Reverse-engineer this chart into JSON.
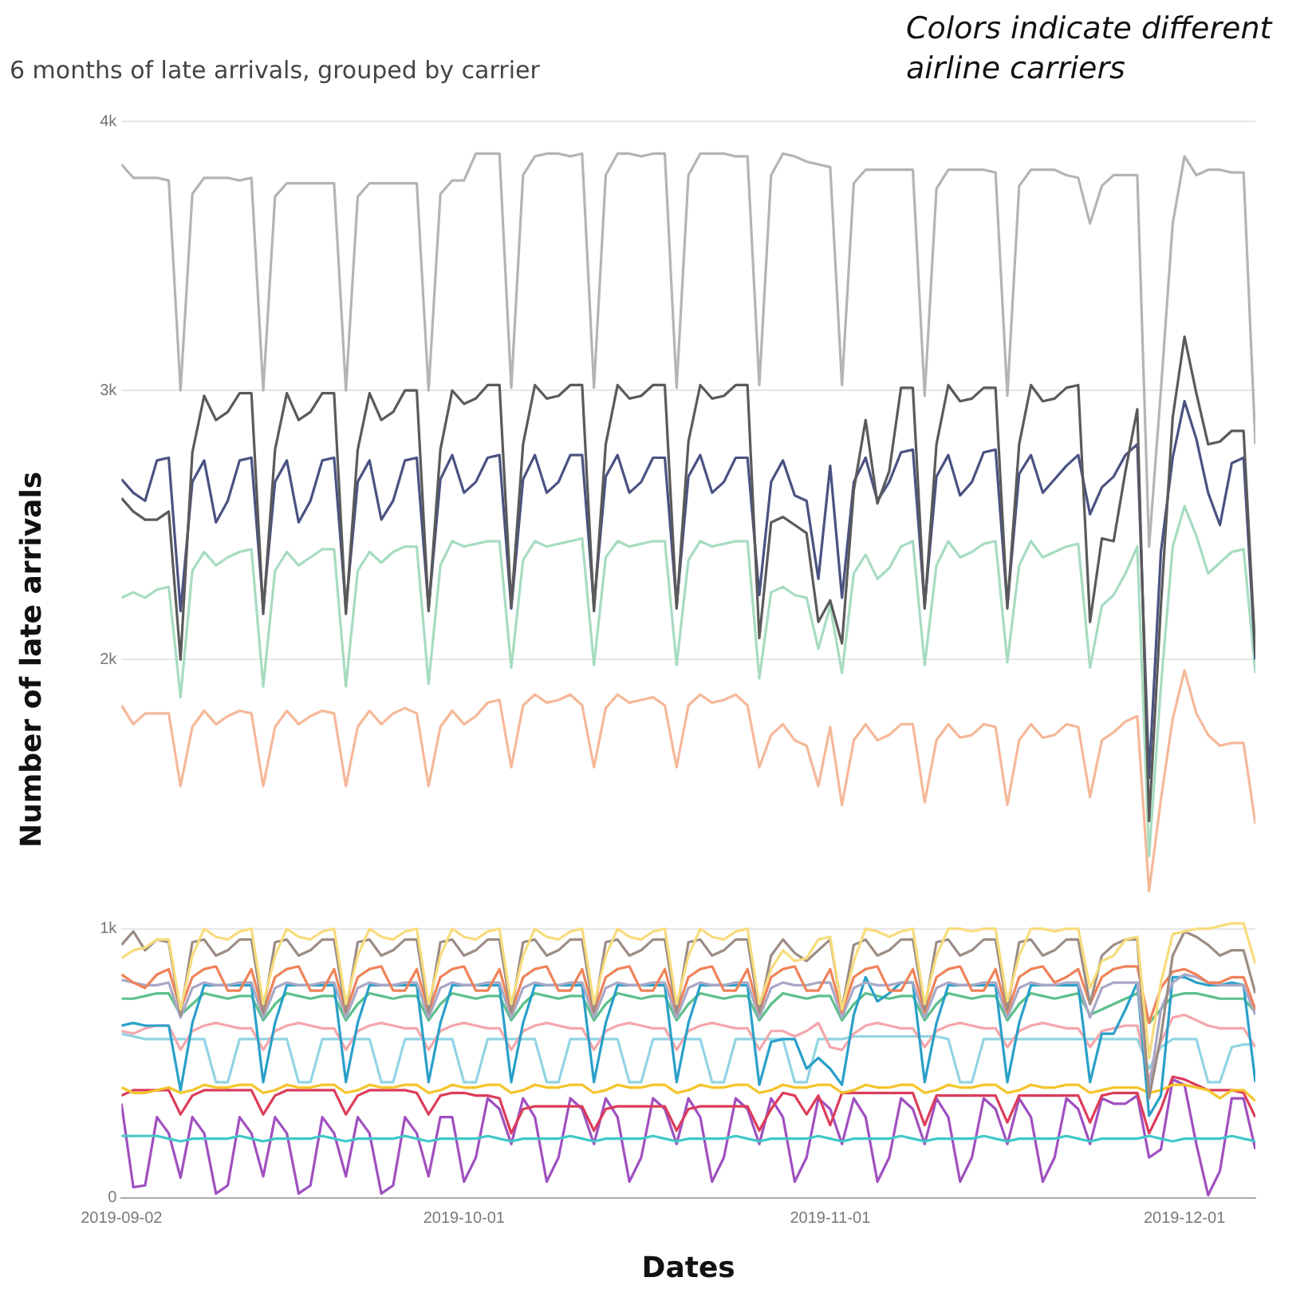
{
  "chart_data": {
    "type": "line",
    "title": "6 months of late arrivals, grouped by carrier",
    "xlabel": "Dates",
    "ylabel": "Number of late arrivals",
    "annotations": [
      "Colors indicate different airline carriers"
    ],
    "x": [
      "2019-09-02",
      "2019-09-03",
      "2019-09-04",
      "2019-09-05",
      "2019-09-06",
      "2019-09-07",
      "2019-09-08",
      "2019-09-09",
      "2019-09-10",
      "2019-09-11",
      "2019-09-12",
      "2019-09-13",
      "2019-09-14",
      "2019-09-15",
      "2019-09-16",
      "2019-09-17",
      "2019-09-18",
      "2019-09-19",
      "2019-09-20",
      "2019-09-21",
      "2019-09-22",
      "2019-09-23",
      "2019-09-24",
      "2019-09-25",
      "2019-09-26",
      "2019-09-27",
      "2019-09-28",
      "2019-09-29",
      "2019-09-30",
      "2019-10-01",
      "2019-10-02",
      "2019-10-03",
      "2019-10-04",
      "2019-10-05",
      "2019-10-06",
      "2019-10-07",
      "2019-10-08",
      "2019-10-09",
      "2019-10-10",
      "2019-10-11",
      "2019-10-12",
      "2019-10-13",
      "2019-10-14",
      "2019-10-15",
      "2019-10-16",
      "2019-10-17",
      "2019-10-18",
      "2019-10-19",
      "2019-10-20",
      "2019-10-21",
      "2019-10-22",
      "2019-10-23",
      "2019-10-24",
      "2019-10-25",
      "2019-10-26",
      "2019-10-27",
      "2019-10-28",
      "2019-10-29",
      "2019-10-30",
      "2019-10-31",
      "2019-11-01",
      "2019-11-02",
      "2019-11-03",
      "2019-11-04",
      "2019-11-05",
      "2019-11-06",
      "2019-11-07",
      "2019-11-08",
      "2019-11-09",
      "2019-11-10",
      "2019-11-11",
      "2019-11-12",
      "2019-11-13",
      "2019-11-14",
      "2019-11-15",
      "2019-11-16",
      "2019-11-17",
      "2019-11-18",
      "2019-11-19",
      "2019-11-20",
      "2019-11-21",
      "2019-11-22",
      "2019-11-23",
      "2019-11-24",
      "2019-11-25",
      "2019-11-26",
      "2019-11-27",
      "2019-11-28",
      "2019-11-29",
      "2019-11-30",
      "2019-12-01",
      "2019-12-02",
      "2019-12-03",
      "2019-12-04",
      "2019-12-05",
      "2019-12-06",
      "2019-12-07"
    ],
    "xlim": [
      "2019-09-02",
      "2019-12-07"
    ],
    "xticks": [
      "2019-09-02",
      "2019-10-01",
      "2019-11-01",
      "2019-12-01"
    ],
    "ylim": [
      0,
      4000
    ],
    "yticks": [
      0,
      {
        "value": 1000,
        "label": "1k"
      },
      {
        "value": 2000,
        "label": "2k"
      },
      {
        "value": 3000,
        "label": "3k"
      },
      {
        "value": 4000,
        "label": "4k"
      }
    ],
    "grid": "y",
    "legend": false,
    "marker": "none",
    "line_style": "solid",
    "series": [
      {
        "color": "#b4b4b4",
        "values": [
          3840,
          3790,
          3790,
          3790,
          3780,
          3000,
          3730,
          3790,
          3790,
          3790,
          3780,
          3790,
          3000,
          3720,
          3770,
          3770,
          3770,
          3770,
          3770,
          3000,
          3720,
          3770,
          3770,
          3770,
          3770,
          3770,
          3000,
          3730,
          3780,
          3780,
          3880,
          3880,
          3880,
          3010,
          3800,
          3870,
          3880,
          3880,
          3870,
          3880,
          3010,
          3800,
          3880,
          3880,
          3870,
          3880,
          3880,
          3010,
          3800,
          3880,
          3880,
          3880,
          3870,
          3870,
          3020,
          3800,
          3880,
          3870,
          3850,
          3840,
          3830,
          3020,
          3770,
          3820,
          3820,
          3820,
          3820,
          3820,
          2980,
          3750,
          3820,
          3820,
          3820,
          3820,
          3810,
          2980,
          3760,
          3820,
          3820,
          3820,
          3800,
          3790,
          3620,
          3760,
          3800,
          3800,
          3800,
          2420,
          3000,
          3620,
          3870,
          3800,
          3820,
          3820,
          3810,
          3810,
          2800
        ]
      },
      {
        "color": "#5a5a5a",
        "values": [
          2600,
          2550,
          2520,
          2520,
          2550,
          2000,
          2770,
          2980,
          2890,
          2920,
          2990,
          2990,
          2170,
          2780,
          2990,
          2890,
          2920,
          2990,
          2990,
          2170,
          2780,
          2990,
          2890,
          2920,
          3000,
          3000,
          2180,
          2780,
          3000,
          2950,
          2970,
          3020,
          3020,
          2200,
          2800,
          3020,
          2970,
          2980,
          3020,
          3020,
          2180,
          2800,
          3020,
          2970,
          2980,
          3020,
          3020,
          2190,
          2810,
          3020,
          2970,
          2980,
          3020,
          3020,
          2080,
          2510,
          2530,
          2500,
          2470,
          2140,
          2220,
          2060,
          2630,
          2890,
          2580,
          2700,
          3010,
          3010,
          2190,
          2800,
          3020,
          2960,
          2970,
          3010,
          3010,
          2190,
          2800,
          3020,
          2960,
          2970,
          3010,
          3020,
          2140,
          2450,
          2440,
          2700,
          2930,
          1400,
          2200,
          2900,
          3200,
          2990,
          2800,
          2810,
          2850,
          2850,
          2020
        ]
      },
      {
        "color": "#4a5282",
        "values": [
          2670,
          2620,
          2590,
          2740,
          2750,
          2180,
          2660,
          2740,
          2510,
          2590,
          2740,
          2750,
          2190,
          2660,
          2740,
          2510,
          2590,
          2740,
          2750,
          2190,
          2660,
          2740,
          2520,
          2590,
          2740,
          2750,
          2190,
          2670,
          2760,
          2620,
          2660,
          2750,
          2760,
          2190,
          2670,
          2760,
          2620,
          2660,
          2760,
          2760,
          2200,
          2680,
          2760,
          2620,
          2660,
          2750,
          2750,
          2200,
          2680,
          2760,
          2620,
          2660,
          2750,
          2750,
          2240,
          2660,
          2740,
          2610,
          2590,
          2300,
          2720,
          2230,
          2660,
          2750,
          2590,
          2660,
          2770,
          2780,
          2200,
          2680,
          2760,
          2610,
          2660,
          2770,
          2780,
          2200,
          2690,
          2760,
          2620,
          2670,
          2720,
          2760,
          2540,
          2640,
          2680,
          2760,
          2800,
          1560,
          2400,
          2750,
          2960,
          2820,
          2620,
          2500,
          2730,
          2750,
          2000
        ]
      },
      {
        "color": "#a6dcc0",
        "values": [
          2230,
          2250,
          2230,
          2260,
          2270,
          1860,
          2330,
          2400,
          2350,
          2380,
          2400,
          2410,
          1900,
          2330,
          2400,
          2350,
          2380,
          2410,
          2410,
          1900,
          2330,
          2400,
          2360,
          2400,
          2420,
          2420,
          1910,
          2350,
          2440,
          2420,
          2430,
          2440,
          2440,
          1970,
          2370,
          2440,
          2420,
          2430,
          2440,
          2450,
          1980,
          2380,
          2440,
          2420,
          2430,
          2440,
          2440,
          1980,
          2370,
          2440,
          2420,
          2430,
          2440,
          2440,
          1930,
          2250,
          2270,
          2240,
          2230,
          2040,
          2200,
          1950,
          2320,
          2390,
          2300,
          2340,
          2420,
          2440,
          1980,
          2350,
          2440,
          2380,
          2400,
          2430,
          2440,
          1990,
          2350,
          2440,
          2380,
          2400,
          2420,
          2430,
          1970,
          2200,
          2240,
          2320,
          2420,
          1270,
          1900,
          2420,
          2570,
          2460,
          2320,
          2360,
          2400,
          2410,
          1950
        ]
      },
      {
        "color": "#f5b898",
        "values": [
          1830,
          1760,
          1800,
          1800,
          1800,
          1530,
          1750,
          1810,
          1760,
          1790,
          1810,
          1800,
          1530,
          1750,
          1810,
          1760,
          1790,
          1810,
          1800,
          1530,
          1750,
          1810,
          1760,
          1800,
          1820,
          1800,
          1530,
          1750,
          1810,
          1760,
          1790,
          1840,
          1850,
          1600,
          1830,
          1870,
          1840,
          1850,
          1870,
          1830,
          1600,
          1820,
          1870,
          1840,
          1850,
          1860,
          1830,
          1600,
          1830,
          1870,
          1840,
          1850,
          1870,
          1830,
          1600,
          1720,
          1760,
          1700,
          1680,
          1530,
          1750,
          1460,
          1700,
          1760,
          1700,
          1720,
          1760,
          1760,
          1470,
          1700,
          1760,
          1710,
          1720,
          1760,
          1750,
          1460,
          1700,
          1760,
          1710,
          1720,
          1760,
          1750,
          1490,
          1700,
          1730,
          1770,
          1790,
          1140,
          1480,
          1780,
          1960,
          1800,
          1720,
          1680,
          1690,
          1690,
          1390
        ]
      },
      {
        "color": "#f7dc7c",
        "values": [
          890,
          920,
          930,
          960,
          960,
          700,
          900,
          1000,
          970,
          960,
          990,
          1000,
          720,
          900,
          1000,
          970,
          960,
          990,
          1000,
          720,
          900,
          1000,
          970,
          960,
          990,
          1000,
          720,
          900,
          1000,
          970,
          960,
          990,
          1000,
          720,
          900,
          1000,
          970,
          960,
          990,
          1000,
          720,
          900,
          1000,
          970,
          960,
          990,
          1000,
          720,
          900,
          1000,
          970,
          960,
          990,
          1000,
          720,
          850,
          920,
          880,
          890,
          960,
          970,
          700,
          880,
          1000,
          990,
          970,
          990,
          1000,
          720,
          900,
          1000,
          1000,
          990,
          1000,
          1000,
          730,
          900,
          1000,
          1000,
          990,
          1000,
          1000,
          780,
          880,
          900,
          960,
          970,
          520,
          800,
          980,
          990,
          1000,
          1000,
          1010,
          1020,
          1020,
          870
        ]
      },
      {
        "color": "#9c8c84",
        "values": [
          940,
          990,
          920,
          960,
          950,
          680,
          950,
          960,
          900,
          920,
          960,
          960,
          690,
          950,
          960,
          900,
          920,
          960,
          960,
          690,
          950,
          960,
          900,
          920,
          960,
          960,
          690,
          950,
          960,
          900,
          920,
          960,
          960,
          690,
          950,
          960,
          900,
          920,
          960,
          960,
          690,
          950,
          960,
          900,
          920,
          960,
          960,
          690,
          950,
          960,
          900,
          920,
          960,
          960,
          690,
          900,
          960,
          910,
          880,
          920,
          960,
          700,
          940,
          960,
          900,
          920,
          960,
          960,
          700,
          950,
          960,
          900,
          920,
          960,
          960,
          700,
          950,
          960,
          900,
          920,
          960,
          960,
          720,
          900,
          940,
          960,
          960,
          370,
          600,
          900,
          990,
          970,
          940,
          900,
          920,
          920,
          760
        ]
      },
      {
        "color": "#f0825a",
        "values": [
          830,
          800,
          780,
          830,
          850,
          700,
          820,
          850,
          860,
          770,
          770,
          850,
          690,
          820,
          850,
          860,
          770,
          770,
          850,
          690,
          820,
          850,
          860,
          770,
          770,
          850,
          690,
          820,
          850,
          860,
          770,
          770,
          850,
          690,
          820,
          850,
          860,
          770,
          770,
          850,
          690,
          820,
          850,
          860,
          770,
          770,
          850,
          690,
          820,
          850,
          860,
          770,
          770,
          850,
          690,
          820,
          850,
          860,
          770,
          770,
          850,
          690,
          820,
          850,
          860,
          770,
          770,
          850,
          690,
          820,
          850,
          860,
          770,
          770,
          850,
          690,
          820,
          850,
          860,
          800,
          820,
          850,
          720,
          820,
          850,
          860,
          860,
          650,
          780,
          840,
          850,
          830,
          800,
          800,
          820,
          820,
          700
        ]
      },
      {
        "color": "#a8a8c6",
        "values": [
          810,
          800,
          790,
          790,
          800,
          670,
          780,
          800,
          790,
          790,
          800,
          800,
          670,
          780,
          800,
          790,
          790,
          800,
          800,
          670,
          780,
          800,
          790,
          790,
          800,
          800,
          670,
          780,
          800,
          790,
          790,
          800,
          800,
          670,
          780,
          800,
          790,
          790,
          800,
          800,
          670,
          780,
          800,
          790,
          790,
          800,
          800,
          670,
          780,
          800,
          790,
          790,
          800,
          800,
          670,
          780,
          800,
          790,
          790,
          800,
          800,
          670,
          780,
          800,
          790,
          790,
          800,
          800,
          670,
          780,
          800,
          790,
          790,
          800,
          800,
          670,
          780,
          800,
          790,
          790,
          800,
          800,
          670,
          780,
          800,
          800,
          800,
          400,
          700,
          800,
          830,
          820,
          800,
          790,
          790,
          790,
          680
        ]
      },
      {
        "color": "#2aa0c8",
        "values": [
          640,
          650,
          640,
          640,
          640,
          400,
          650,
          790,
          790,
          790,
          790,
          790,
          430,
          650,
          790,
          790,
          790,
          790,
          790,
          430,
          650,
          790,
          790,
          790,
          790,
          790,
          430,
          650,
          790,
          790,
          790,
          790,
          790,
          430,
          650,
          790,
          790,
          790,
          790,
          790,
          430,
          650,
          790,
          790,
          790,
          790,
          790,
          430,
          650,
          790,
          790,
          790,
          790,
          790,
          420,
          580,
          590,
          590,
          480,
          520,
          480,
          420,
          680,
          820,
          730,
          760,
          800,
          800,
          430,
          650,
          790,
          790,
          790,
          790,
          790,
          430,
          650,
          790,
          790,
          790,
          790,
          790,
          430,
          610,
          610,
          700,
          800,
          305,
          380,
          820,
          820,
          800,
          790,
          790,
          800,
          790,
          430
        ]
      },
      {
        "color": "#5cc08a",
        "values": [
          740,
          740,
          750,
          760,
          760,
          680,
          720,
          760,
          750,
          740,
          750,
          750,
          660,
          720,
          760,
          750,
          740,
          750,
          750,
          660,
          720,
          760,
          750,
          740,
          750,
          750,
          660,
          720,
          760,
          750,
          740,
          750,
          750,
          660,
          720,
          760,
          750,
          740,
          750,
          750,
          660,
          720,
          760,
          750,
          740,
          750,
          750,
          660,
          720,
          760,
          750,
          740,
          750,
          750,
          660,
          720,
          760,
          750,
          740,
          750,
          750,
          660,
          720,
          760,
          750,
          740,
          750,
          750,
          660,
          720,
          760,
          750,
          740,
          750,
          750,
          660,
          720,
          760,
          750,
          740,
          750,
          760,
          680,
          700,
          720,
          740,
          760,
          650,
          700,
          750,
          760,
          760,
          750,
          740,
          740,
          740,
          690
        ]
      },
      {
        "color": "#f4a6ac",
        "values": [
          620,
          610,
          630,
          640,
          640,
          550,
          620,
          640,
          650,
          640,
          630,
          630,
          550,
          620,
          640,
          650,
          640,
          630,
          630,
          550,
          620,
          640,
          650,
          640,
          630,
          630,
          550,
          620,
          640,
          650,
          640,
          630,
          630,
          550,
          620,
          640,
          650,
          640,
          630,
          630,
          550,
          620,
          640,
          650,
          640,
          630,
          630,
          550,
          620,
          640,
          650,
          640,
          630,
          630,
          550,
          620,
          620,
          600,
          620,
          650,
          560,
          550,
          610,
          640,
          650,
          640,
          630,
          630,
          560,
          620,
          640,
          650,
          640,
          630,
          630,
          560,
          620,
          640,
          650,
          640,
          630,
          630,
          560,
          620,
          630,
          640,
          640,
          440,
          580,
          670,
          680,
          660,
          640,
          630,
          630,
          630,
          560
        ]
      },
      {
        "color": "#90d4e4",
        "values": [
          610,
          600,
          590,
          590,
          590,
          590,
          590,
          590,
          430,
          430,
          590,
          590,
          590,
          590,
          590,
          430,
          430,
          590,
          590,
          590,
          590,
          590,
          430,
          430,
          590,
          590,
          590,
          590,
          590,
          430,
          430,
          590,
          590,
          590,
          590,
          590,
          430,
          430,
          590,
          590,
          590,
          590,
          590,
          430,
          430,
          590,
          590,
          590,
          590,
          590,
          430,
          430,
          590,
          590,
          590,
          590,
          590,
          430,
          430,
          590,
          590,
          590,
          600,
          600,
          600,
          600,
          600,
          600,
          600,
          600,
          590,
          430,
          430,
          590,
          590,
          590,
          590,
          590,
          590,
          590,
          590,
          590,
          590,
          590,
          590,
          590,
          590,
          480,
          560,
          590,
          590,
          590,
          430,
          430,
          560,
          570,
          570
        ]
      },
      {
        "color": "#f5c42a",
        "values": [
          410,
          390,
          390,
          400,
          410,
          390,
          400,
          420,
          410,
          410,
          420,
          420,
          390,
          400,
          420,
          410,
          410,
          420,
          420,
          390,
          400,
          420,
          410,
          410,
          420,
          420,
          390,
          400,
          420,
          410,
          410,
          420,
          420,
          390,
          400,
          420,
          410,
          410,
          420,
          420,
          390,
          400,
          420,
          410,
          410,
          420,
          420,
          390,
          400,
          420,
          410,
          410,
          420,
          420,
          390,
          400,
          420,
          410,
          410,
          420,
          420,
          390,
          400,
          420,
          410,
          410,
          420,
          420,
          390,
          400,
          420,
          410,
          410,
          420,
          420,
          390,
          400,
          420,
          410,
          410,
          420,
          420,
          390,
          400,
          410,
          410,
          410,
          390,
          400,
          420,
          420,
          410,
          400,
          370,
          400,
          400,
          360
        ]
      },
      {
        "color": "#dc3c5a",
        "values": [
          380,
          400,
          400,
          400,
          400,
          310,
          380,
          400,
          400,
          400,
          400,
          400,
          310,
          380,
          400,
          400,
          400,
          400,
          400,
          310,
          380,
          400,
          400,
          400,
          400,
          390,
          310,
          380,
          390,
          390,
          380,
          380,
          370,
          240,
          330,
          340,
          340,
          340,
          340,
          340,
          250,
          330,
          340,
          340,
          340,
          340,
          340,
          250,
          330,
          340,
          340,
          340,
          340,
          340,
          250,
          330,
          390,
          380,
          310,
          380,
          270,
          390,
          390,
          390,
          390,
          390,
          390,
          390,
          270,
          380,
          380,
          380,
          380,
          380,
          380,
          280,
          380,
          380,
          380,
          380,
          380,
          380,
          280,
          380,
          390,
          390,
          390,
          240,
          330,
          450,
          440,
          420,
          400,
          400,
          400,
          390,
          300
        ]
      },
      {
        "color": "#40c8c8",
        "values": [
          230,
          230,
          230,
          230,
          220,
          210,
          220,
          220,
          220,
          220,
          230,
          220,
          210,
          220,
          220,
          220,
          220,
          230,
          220,
          210,
          220,
          220,
          220,
          220,
          230,
          220,
          210,
          220,
          220,
          220,
          220,
          230,
          220,
          210,
          220,
          220,
          220,
          220,
          230,
          220,
          210,
          220,
          220,
          220,
          220,
          230,
          220,
          210,
          220,
          220,
          220,
          220,
          230,
          220,
          210,
          220,
          220,
          220,
          220,
          230,
          220,
          210,
          220,
          220,
          220,
          220,
          230,
          220,
          210,
          220,
          220,
          220,
          220,
          230,
          220,
          210,
          220,
          220,
          220,
          220,
          230,
          220,
          210,
          220,
          220,
          220,
          220,
          230,
          220,
          210,
          220,
          220,
          220,
          220,
          230,
          220,
          210
        ]
      },
      {
        "color": "#a050c0",
        "values": [
          350,
          40,
          46,
          300,
          240,
          75,
          300,
          240,
          16,
          46,
          300,
          240,
          80,
          300,
          240,
          16,
          46,
          300,
          240,
          80,
          300,
          240,
          16,
          46,
          300,
          240,
          80,
          300,
          300,
          60,
          150,
          370,
          330,
          200,
          370,
          300,
          60,
          150,
          370,
          330,
          200,
          370,
          300,
          60,
          150,
          370,
          330,
          200,
          370,
          300,
          60,
          150,
          370,
          330,
          200,
          370,
          300,
          60,
          150,
          370,
          330,
          200,
          370,
          300,
          60,
          150,
          370,
          330,
          200,
          370,
          300,
          60,
          150,
          370,
          330,
          200,
          370,
          300,
          60,
          150,
          370,
          330,
          200,
          370,
          350,
          350,
          380,
          150,
          180,
          440,
          420,
          200,
          10,
          100,
          370,
          370,
          180
        ]
      }
    ]
  }
}
